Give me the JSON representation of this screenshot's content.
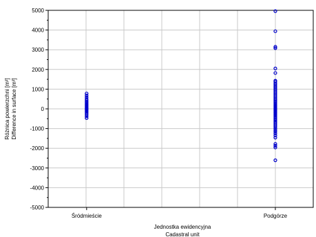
{
  "chart_data": {
    "type": "scatter",
    "xlabel_lines": [
      "Jednostka ewidencyjna",
      "Cadastral unit"
    ],
    "ylabel_lines": [
      "Różnica powierzchni [m²]",
      "Difference in surface [m²]"
    ],
    "categories": [
      "Śródmieście",
      "Podgórze"
    ],
    "ylim": [
      -5000,
      5000
    ],
    "yticks": [
      5000,
      4000,
      3000,
      2000,
      1000,
      0,
      -1000,
      -2000,
      -3000,
      -4000,
      -5000
    ],
    "grid": true,
    "marker_color": "#0000cc",
    "series": [
      {
        "category": "Śródmieście",
        "values": [
          780,
          680,
          590,
          500,
          430,
          370,
          320,
          260,
          210,
          160,
          110,
          60,
          20,
          -20,
          -70,
          -120,
          -170,
          -230,
          -300,
          -380,
          -470
        ]
      },
      {
        "category": "Podgórze",
        "values": [
          4960,
          3940,
          3150,
          3080,
          2050,
          1820,
          1430,
          1380,
          1300,
          1230,
          1150,
          1080,
          1000,
          930,
          860,
          790,
          720,
          650,
          580,
          510,
          450,
          390,
          330,
          270,
          210,
          160,
          110,
          60,
          10,
          -40,
          -90,
          -140,
          -190,
          -240,
          -290,
          -340,
          -400,
          -460,
          -520,
          -580,
          -640,
          -700,
          -770,
          -840,
          -910,
          -990,
          -1080,
          -1160,
          -1250,
          -1350,
          -1460,
          -1780,
          -1870,
          -1960,
          -2610
        ]
      }
    ]
  }
}
